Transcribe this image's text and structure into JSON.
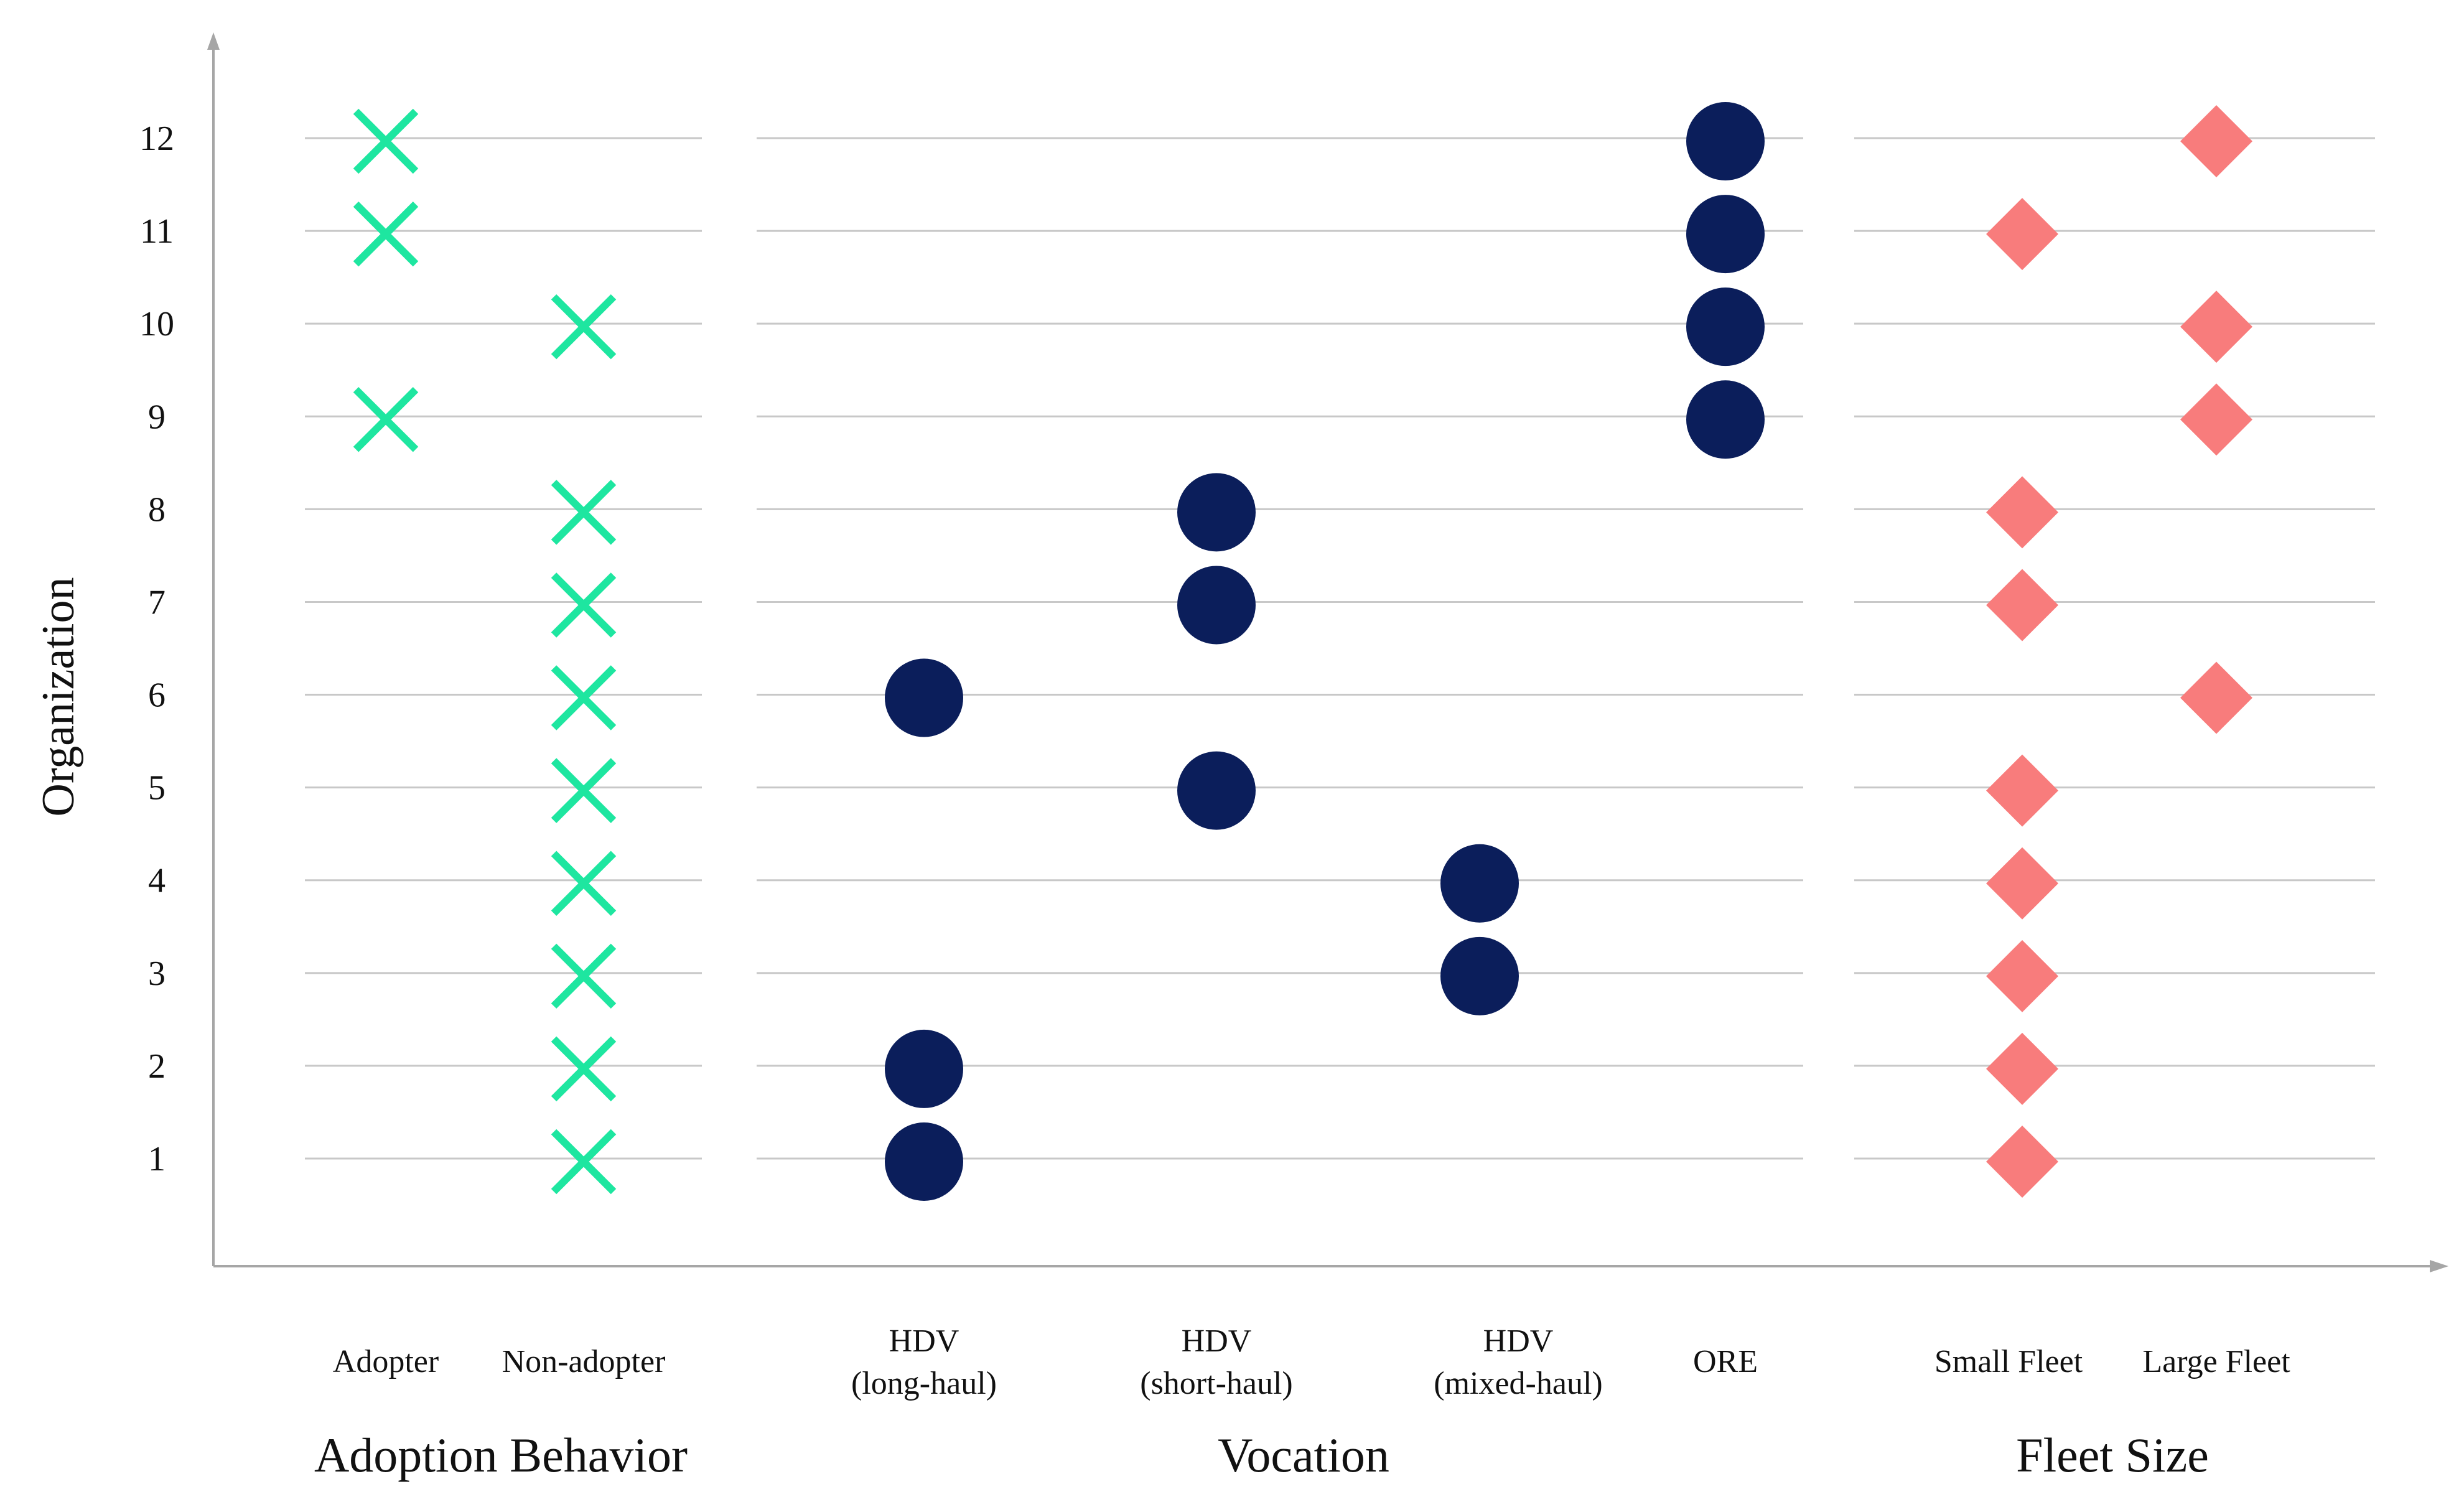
{
  "chart_data": {
    "type": "scatter",
    "ylabel": "Organization",
    "yticks": [
      1,
      2,
      3,
      4,
      5,
      6,
      7,
      8,
      9,
      10,
      11,
      12
    ],
    "ylim": [
      0,
      13
    ],
    "grid": true,
    "groups": [
      {
        "name": "Adoption Behavior",
        "marker": "x",
        "color": "#1ee6a0",
        "categories": [
          {
            "label": "Adopter",
            "label_lines": [
              "Adopter"
            ],
            "values": [
              12,
              11,
              9
            ]
          },
          {
            "label": "Non-adopter",
            "label_lines": [
              "Non-adopter"
            ],
            "values": [
              10,
              8,
              7,
              6,
              5,
              4,
              3,
              2,
              1
            ]
          }
        ]
      },
      {
        "name": "Vocation",
        "marker": "circle",
        "color": "#0b1e5b",
        "categories": [
          {
            "label": "HDV (long-haul)",
            "label_lines": [
              "HDV",
              "(long-haul)"
            ],
            "values": [
              6,
              2,
              1
            ]
          },
          {
            "label": "HDV (short-haul)",
            "label_lines": [
              "HDV",
              "(short-haul)"
            ],
            "values": [
              8,
              7,
              5
            ]
          },
          {
            "label": "HDV (mixed-haul)",
            "label_lines": [
              "HDV",
              "(mixed-haul)"
            ],
            "values": [
              4,
              3
            ]
          },
          {
            "label": "ORE",
            "label_lines": [
              "ORE"
            ],
            "values": [
              12,
              11,
              10,
              9
            ]
          }
        ]
      },
      {
        "name": "Fleet Size",
        "marker": "diamond",
        "color": "#f87c7c",
        "categories": [
          {
            "label": "Small Fleet",
            "label_lines": [
              "Small Fleet"
            ],
            "values": [
              11,
              8,
              7,
              5,
              4,
              3,
              2,
              1
            ]
          },
          {
            "label": "Large Fleet",
            "label_lines": [
              "Large Fleet"
            ],
            "values": [
              12,
              10,
              9,
              6
            ]
          }
        ]
      }
    ]
  }
}
